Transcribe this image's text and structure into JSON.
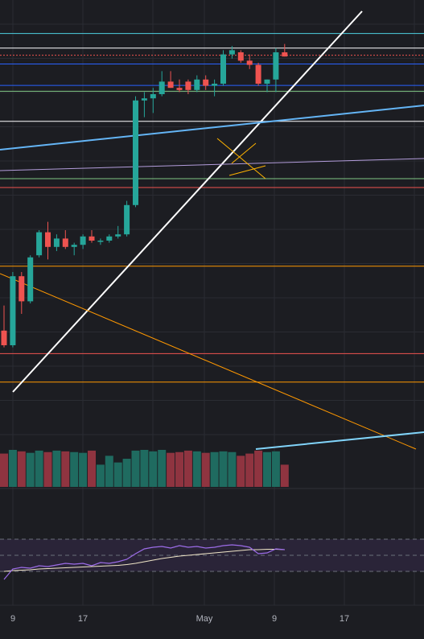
{
  "chart_data": {
    "type": "candlestick",
    "x_axis": {
      "tick_labels": [
        "9",
        "17",
        "May",
        "9",
        "17"
      ]
    },
    "price_scale": {
      "min": 0,
      "max": 100
    },
    "candles": [
      {
        "o": 21.0,
        "h": 27.0,
        "l": 17.0,
        "c": 17.5
      },
      {
        "o": 17.5,
        "h": 35.0,
        "l": 17.0,
        "c": 34.0
      },
      {
        "o": 34.0,
        "h": 35.0,
        "l": 25.0,
        "c": 28.0
      },
      {
        "o": 28.0,
        "h": 39.0,
        "l": 27.5,
        "c": 38.5
      },
      {
        "o": 39.0,
        "h": 45.0,
        "l": 38.5,
        "c": 44.5
      },
      {
        "o": 44.5,
        "h": 47.0,
        "l": 38.0,
        "c": 41.0
      },
      {
        "o": 41.0,
        "h": 44.0,
        "l": 40.0,
        "c": 43.0
      },
      {
        "o": 43.0,
        "h": 45.0,
        "l": 40.5,
        "c": 41.0
      },
      {
        "o": 41.0,
        "h": 42.0,
        "l": 39.0,
        "c": 41.5
      },
      {
        "o": 41.5,
        "h": 44.0,
        "l": 40.5,
        "c": 43.5
      },
      {
        "o": 43.5,
        "h": 45.0,
        "l": 42.0,
        "c": 42.5
      },
      {
        "o": 42.5,
        "h": 43.0,
        "l": 41.5,
        "c": 42.5
      },
      {
        "o": 42.5,
        "h": 44.0,
        "l": 42.0,
        "c": 43.5
      },
      {
        "o": 43.5,
        "h": 46.0,
        "l": 43.0,
        "c": 44.0
      },
      {
        "o": 44.0,
        "h": 52.0,
        "l": 43.5,
        "c": 51.0
      },
      {
        "o": 51.0,
        "h": 77.0,
        "l": 50.5,
        "c": 76.0
      },
      {
        "o": 76.0,
        "h": 78.0,
        "l": 72.0,
        "c": 76.5
      },
      {
        "o": 76.5,
        "h": 79.0,
        "l": 73.0,
        "c": 77.5
      },
      {
        "o": 77.5,
        "h": 83.0,
        "l": 77.0,
        "c": 80.5
      },
      {
        "o": 80.5,
        "h": 83.0,
        "l": 79.0,
        "c": 79.0
      },
      {
        "o": 79.0,
        "h": 81.0,
        "l": 78.0,
        "c": 78.5
      },
      {
        "o": 80.5,
        "h": 81.0,
        "l": 77.5,
        "c": 78.5
      },
      {
        "o": 78.5,
        "h": 82.0,
        "l": 78.0,
        "c": 81.0
      },
      {
        "o": 81.0,
        "h": 82.0,
        "l": 78.5,
        "c": 79.5
      },
      {
        "o": 79.5,
        "h": 81.0,
        "l": 77.0,
        "c": 80.0
      },
      {
        "o": 80.0,
        "h": 88.0,
        "l": 79.5,
        "c": 87.0
      },
      {
        "o": 87.0,
        "h": 89.0,
        "l": 86.0,
        "c": 88.0
      },
      {
        "o": 87.5,
        "h": 88.0,
        "l": 85.0,
        "c": 85.5
      },
      {
        "o": 85.5,
        "h": 87.0,
        "l": 83.5,
        "c": 84.5
      },
      {
        "o": 84.5,
        "h": 85.0,
        "l": 79.5,
        "c": 80.0
      },
      {
        "o": 80.0,
        "h": 81.0,
        "l": 78.0,
        "c": 81.0
      },
      {
        "o": 81.0,
        "h": 88.5,
        "l": 78.0,
        "c": 87.5
      },
      {
        "o": 87.5,
        "h": 89.5,
        "l": 86.5,
        "c": 86.5
      }
    ],
    "volume": [
      45,
      50,
      48,
      46,
      49,
      47,
      49,
      48,
      47,
      46,
      49,
      30,
      42,
      33,
      38,
      49,
      50,
      48,
      50,
      46,
      47,
      49,
      48,
      46,
      47,
      48,
      47,
      42,
      45,
      49,
      47,
      48,
      30
    ],
    "rsi": {
      "values": [
        20,
        33,
        35,
        34,
        37,
        36,
        38,
        40,
        39,
        40,
        37,
        41,
        40,
        42,
        45,
        52,
        58,
        60,
        61,
        59,
        62,
        60,
        61,
        59,
        60,
        62,
        63,
        62,
        60,
        52,
        53,
        58,
        57
      ],
      "ma": [
        30,
        31,
        31.5,
        32,
        33,
        33.5,
        34,
        34.5,
        35,
        35.5,
        36,
        36.5,
        37,
        37.5,
        38.5,
        40,
        42,
        44,
        46,
        47.5,
        49,
        50,
        51,
        52,
        53,
        54,
        55,
        56,
        57,
        57,
        57.5,
        57.5,
        57
      ],
      "bands": [
        30,
        50,
        70
      ]
    },
    "horizontal_levels": [
      {
        "value": 92.0,
        "color": "#4dd0e1"
      },
      {
        "value": 88.5,
        "color": "#ffffff"
      },
      {
        "value": 86.8,
        "color": "#ef5350",
        "style": "dotted"
      },
      {
        "value": 84.7,
        "color": "#2962ff"
      },
      {
        "value": 79.6,
        "color": "#2962ff"
      },
      {
        "value": 78.2,
        "color": "#81c784"
      },
      {
        "value": 71.0,
        "color": "#ffffff"
      },
      {
        "value": 57.3,
        "color": "#81c784"
      },
      {
        "value": 55.2,
        "color": "#ef5350"
      },
      {
        "value": 36.4,
        "color": "#ff9800"
      },
      {
        "value": 15.5,
        "color": "#ef5350"
      },
      {
        "value": 8.7,
        "color": "#ff9800"
      }
    ],
    "colors": {
      "up": "#26a69a",
      "down": "#ef5350",
      "background": "#1c1d22",
      "grid": "#2a2c33",
      "rsi_line": "#9c6ce8",
      "rsi_ma": "#f0e6c8"
    }
  }
}
